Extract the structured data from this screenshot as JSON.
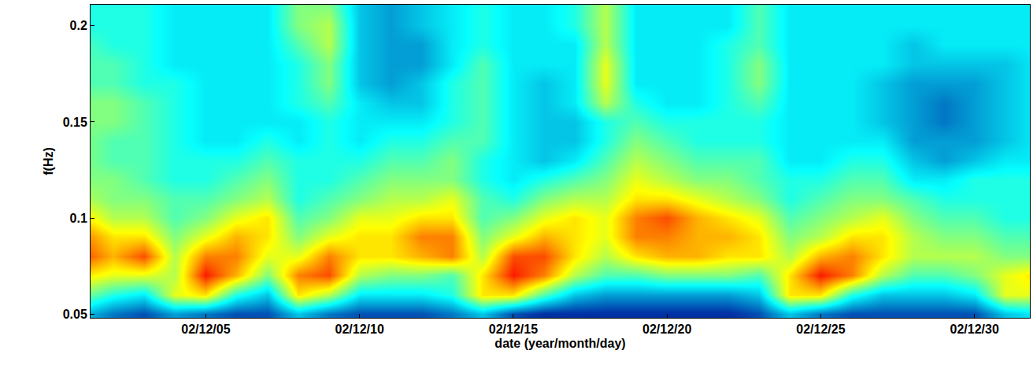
{
  "chart_data": {
    "type": "heatmap",
    "xlabel": "date (year/month/day)",
    "ylabel": "f(Hz)",
    "color": "Jet",
    "x": [
      1,
      2,
      3,
      4,
      5,
      6,
      7,
      8,
      9,
      10,
      11,
      12,
      13,
      14,
      15,
      16,
      17,
      18,
      19,
      20,
      21,
      22,
      23,
      24,
      25,
      26,
      27,
      28,
      29,
      30,
      31,
      32
    ],
    "y": [
      0.05,
      0.06,
      0.07,
      0.08,
      0.09,
      0.1,
      0.11,
      0.12,
      0.13,
      0.14,
      0.15,
      0.16,
      0.17,
      0.18,
      0.19,
      0.2,
      0.21
    ],
    "cells": [
      [
        3,
        2,
        1.5,
        2.5,
        2,
        1.5,
        1.5,
        3,
        2,
        1.5,
        1.5,
        1.5,
        2,
        3,
        1.5,
        1,
        1,
        1,
        1,
        1,
        1,
        1,
        1.5,
        3,
        2,
        1.5,
        1.5,
        1.5,
        1.5,
        1.5,
        3,
        3.5
      ],
      [
        5,
        4,
        3.5,
        6,
        6.5,
        4,
        3,
        6.5,
        5.5,
        3.5,
        3.5,
        3.5,
        4,
        6.5,
        6.5,
        4.5,
        3,
        2.5,
        2.5,
        2.5,
        2.5,
        2.5,
        3,
        6.5,
        6.5,
        4,
        3,
        3,
        3,
        3.5,
        6,
        6
      ],
      [
        6.5,
        6,
        6,
        5.5,
        8.5,
        7,
        5,
        7.5,
        8,
        5.5,
        5,
        5,
        4.5,
        6.5,
        8.5,
        7.5,
        5.5,
        4.5,
        4.5,
        5,
        5,
        5,
        4.5,
        6.5,
        8.5,
        7.5,
        5.5,
        4.5,
        4.5,
        5,
        6,
        6.5
      ],
      [
        8,
        7,
        8,
        5.5,
        7.5,
        7.5,
        6,
        6,
        7.5,
        6.5,
        6.5,
        7,
        7.5,
        5.5,
        8,
        8,
        6.5,
        5.5,
        6.5,
        7,
        7,
        6.5,
        6.5,
        5.5,
        7,
        7.5,
        6.5,
        5.5,
        5.5,
        5.5,
        5,
        5
      ],
      [
        7.5,
        6.5,
        6.5,
        5,
        6,
        7,
        6.5,
        5,
        6,
        6.5,
        6.5,
        7.5,
        7.5,
        5,
        6,
        7,
        6.5,
        6,
        7.5,
        7.5,
        7,
        7,
        6.5,
        5,
        5.5,
        6.5,
        6.5,
        5.5,
        5,
        5,
        4.5,
        4.5
      ],
      [
        6.5,
        5.5,
        5.5,
        4.5,
        5,
        6,
        6.5,
        4.5,
        5,
        6,
        6,
        6.5,
        6.5,
        4.5,
        5,
        6,
        6.5,
        6,
        7.5,
        8,
        7,
        6.5,
        6,
        4.5,
        5,
        5.5,
        6,
        5,
        4.5,
        4.5,
        4,
        4
      ],
      [
        5.5,
        5,
        5,
        4.5,
        4.5,
        5,
        5.5,
        4,
        4.5,
        5,
        5.5,
        5.5,
        6,
        4.5,
        4,
        5,
        5.5,
        5.5,
        6.5,
        6.5,
        6,
        5.5,
        5,
        4,
        4.5,
        5,
        5,
        4.5,
        4,
        4,
        4,
        4
      ],
      [
        5,
        5,
        4.5,
        4,
        4,
        4.5,
        5,
        4,
        4,
        4.5,
        5,
        5,
        5,
        4,
        3.5,
        4,
        4.5,
        5,
        6,
        5.5,
        5,
        5,
        4.5,
        4,
        4,
        4.5,
        4.5,
        3.5,
        3.5,
        4,
        4,
        4
      ],
      [
        5,
        4.5,
        4.5,
        4,
        4,
        4,
        4.5,
        4,
        4,
        4,
        4.5,
        4.5,
        5,
        4,
        3.5,
        3,
        3.5,
        4.5,
        5.5,
        5,
        4.5,
        4.5,
        4.5,
        3.5,
        3.5,
        4,
        4,
        3,
        2.5,
        3,
        3.5,
        3.5
      ],
      [
        5,
        4.5,
        4.5,
        4,
        3.5,
        3.5,
        4,
        3.5,
        4,
        3.5,
        4,
        4,
        4.5,
        4.5,
        3.5,
        3,
        3,
        4,
        5,
        4.5,
        4,
        4,
        4,
        3.5,
        3.5,
        3.5,
        3.5,
        2.5,
        2.5,
        2.5,
        3,
        3.5
      ],
      [
        5,
        5,
        4.5,
        4,
        3.5,
        3.5,
        3.5,
        3.5,
        4,
        3.5,
        3.5,
        3.5,
        4,
        4.5,
        3.5,
        3,
        3,
        4,
        4.5,
        4,
        4,
        4,
        4,
        3.5,
        3.5,
        3.5,
        3,
        2.5,
        2,
        2.5,
        3,
        3.5
      ],
      [
        5,
        5,
        4.5,
        4,
        3.5,
        3.5,
        3.5,
        4,
        4.5,
        3.5,
        3,
        3,
        4,
        4.5,
        3.5,
        3,
        3.5,
        5.5,
        4,
        3.5,
        3.5,
        4,
        4.5,
        3.5,
        3.5,
        3.5,
        3,
        2.5,
        2,
        2.5,
        3,
        3.5
      ],
      [
        4.5,
        4.5,
        4,
        4,
        3.5,
        3.5,
        3.5,
        4,
        5,
        3,
        2.5,
        3,
        4,
        4.5,
        3.5,
        3,
        3.5,
        6,
        3.5,
        3.5,
        3.5,
        4,
        5,
        3.5,
        3.5,
        3.5,
        3,
        2.5,
        2.5,
        2.5,
        3,
        3.5
      ],
      [
        4.5,
        4.5,
        4,
        3.5,
        3.5,
        3.5,
        3.5,
        4,
        5,
        3,
        2.5,
        2.5,
        3.5,
        4.5,
        3.5,
        3.5,
        3.5,
        6,
        3.5,
        3.5,
        3.5,
        4,
        5,
        3.5,
        3.5,
        3.5,
        3.5,
        3,
        3,
        3,
        3,
        3.5
      ],
      [
        4.5,
        4,
        4,
        3.5,
        3.5,
        3.5,
        3.5,
        4.5,
        5.5,
        3,
        2.5,
        2.5,
        3.5,
        4,
        3.5,
        3.5,
        3.5,
        5.5,
        3.5,
        3.5,
        3.5,
        4,
        4.5,
        3.5,
        3.5,
        3.5,
        3.5,
        3,
        3.5,
        3.5,
        3.5,
        3.5
      ],
      [
        4,
        4,
        4,
        3.5,
        3.5,
        3.5,
        3.5,
        5,
        5.5,
        3,
        2.5,
        3,
        3.5,
        4,
        3.5,
        3.5,
        4,
        5.5,
        3.5,
        3.5,
        3.5,
        3.5,
        4.5,
        3.5,
        3.5,
        3.5,
        3.5,
        3.5,
        3.5,
        3.5,
        3.5,
        3.5
      ],
      [
        4,
        4,
        4,
        3.5,
        3.5,
        3.5,
        3.5,
        5,
        5,
        3,
        2.5,
        3,
        3.5,
        4,
        3.5,
        3.5,
        4,
        5.5,
        3.5,
        3.5,
        3.5,
        3.5,
        4.5,
        3.5,
        3.5,
        3.5,
        3.5,
        3.5,
        3.5,
        3.5,
        3.5,
        3.5
      ]
    ],
    "zlim": [
      0,
      10
    ],
    "xlim": [
      1.25,
      31.8
    ],
    "ylim": [
      0.048,
      0.211
    ],
    "xticks": [
      {
        "value": 5,
        "label": "02/12/05"
      },
      {
        "value": 10,
        "label": "02/12/10"
      },
      {
        "value": 15,
        "label": "02/12/15"
      },
      {
        "value": 20,
        "label": "02/12/20"
      },
      {
        "value": 25,
        "label": "02/12/25"
      },
      {
        "value": 30,
        "label": "02/12/30"
      }
    ],
    "yticks": [
      0.05,
      0.1,
      0.15,
      0.2
    ]
  }
}
